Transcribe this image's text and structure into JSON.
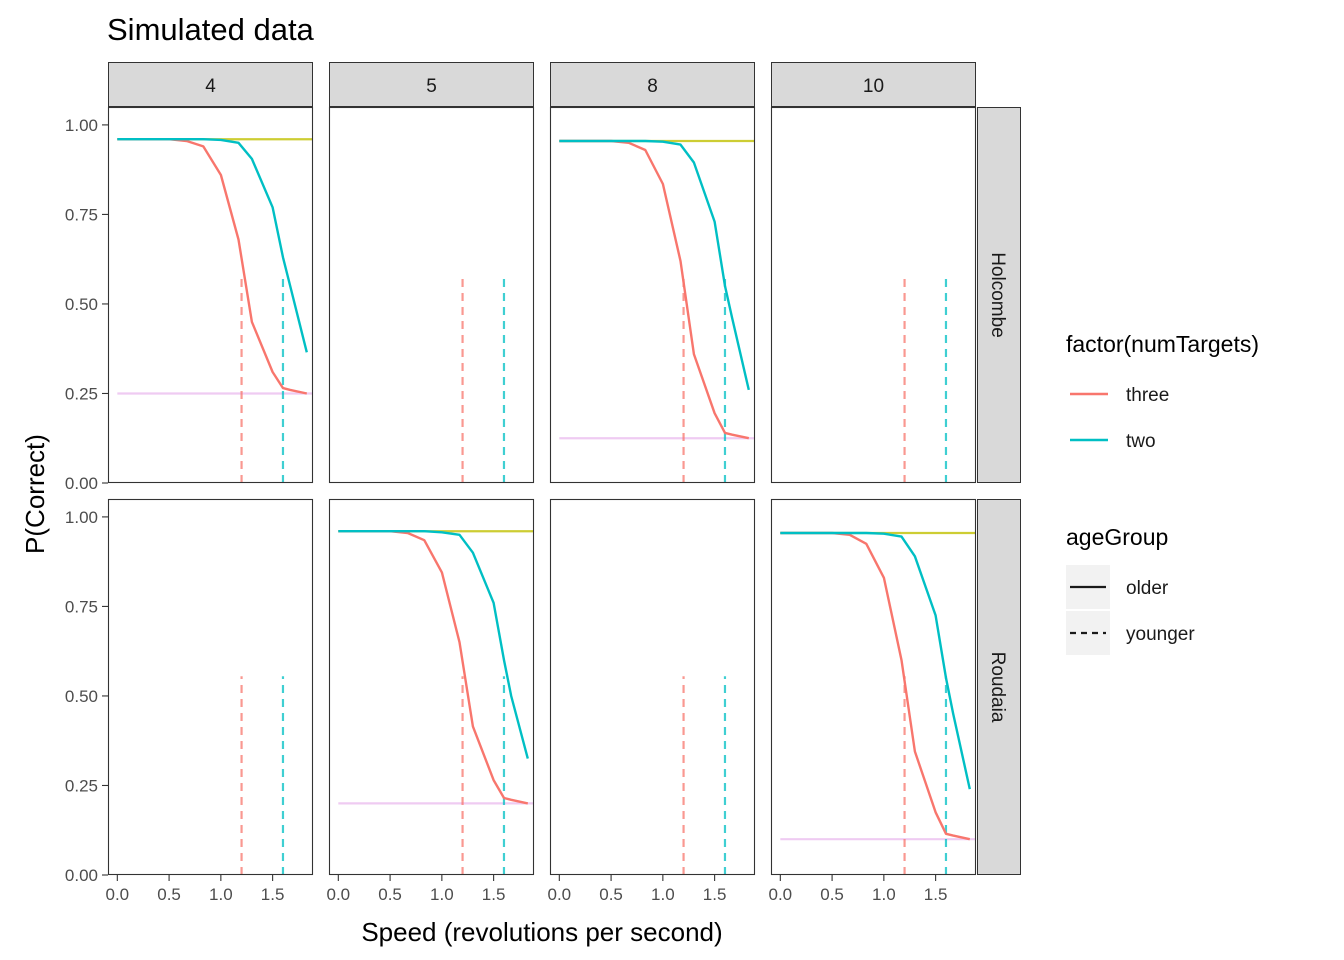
{
  "chart_data": {
    "type": "line",
    "title": "Simulated data",
    "xlabel": "Speed (revolutions per second)",
    "ylabel": "P(Correct)",
    "xlim": [
      -0.09,
      1.89
    ],
    "ylim": [
      0,
      1.05
    ],
    "x_ticks": [
      0,
      0.5,
      1,
      1.5
    ],
    "x_tick_labels": [
      "0.0",
      "0.5",
      "1.0",
      "1.5"
    ],
    "y_ticks": [
      0,
      0.25,
      0.5,
      0.75,
      1
    ],
    "y_tick_labels": [
      "0.00",
      "0.25",
      "0.50",
      "0.75",
      "1.00"
    ],
    "grid": false,
    "legend_position": "right",
    "col_facets": [
      "4",
      "5",
      "8",
      "10"
    ],
    "row_facets": [
      "Holcombe",
      "Roudaia"
    ],
    "colors": {
      "three": "#F8766D",
      "two": "#00BFC4",
      "ceiling": "#CDCD33",
      "chance": "#EFCBF2",
      "strip_fill": "#D9D9D9",
      "panel_border": "#333333"
    },
    "legends": [
      {
        "title": "factor(numTargets)",
        "type": "color",
        "items": [
          {
            "label": "three",
            "color": "#F8766D"
          },
          {
            "label": "two",
            "color": "#00BFC4"
          }
        ]
      },
      {
        "title": "ageGroup",
        "type": "linetype",
        "items": [
          {
            "label": "older",
            "dash": "solid"
          },
          {
            "label": "younger",
            "dash": "dashed"
          }
        ]
      }
    ],
    "speeds": [
      0.0,
      0.17,
      0.33,
      0.5,
      0.67,
      0.83,
      1.0,
      1.17,
      1.3,
      1.5,
      1.6,
      1.67,
      1.83
    ],
    "panels": [
      {
        "row": "Holcombe",
        "col": "4",
        "has_curves": true,
        "ceiling": 0.96,
        "chance": 0.25,
        "vlines": [
          {
            "series": "three",
            "x": 1.2,
            "y_top": 0.58
          },
          {
            "series": "two",
            "x": 1.6,
            "y_top": 0.58
          }
        ],
        "series": [
          {
            "name": "three",
            "y": [
              0.96,
              0.96,
              0.96,
              0.96,
              0.955,
              0.94,
              0.86,
              0.68,
              0.45,
              0.31,
              0.265,
              0.26,
              0.25
            ]
          },
          {
            "name": "two",
            "y": [
              0.96,
              0.96,
              0.96,
              0.96,
              0.96,
              0.96,
              0.958,
              0.95,
              0.905,
              0.77,
              0.63,
              0.55,
              0.365
            ]
          }
        ]
      },
      {
        "row": "Holcombe",
        "col": "5",
        "has_curves": false,
        "ceiling": null,
        "chance": null,
        "vlines": [
          {
            "series": "three",
            "x": 1.2,
            "y_top": 0.58
          },
          {
            "series": "two",
            "x": 1.6,
            "y_top": 0.58
          }
        ],
        "series": []
      },
      {
        "row": "Holcombe",
        "col": "8",
        "has_curves": true,
        "ceiling": 0.955,
        "chance": 0.125,
        "vlines": [
          {
            "series": "three",
            "x": 1.2,
            "y_top": 0.58
          },
          {
            "series": "two",
            "x": 1.6,
            "y_top": 0.58
          }
        ],
        "series": [
          {
            "name": "three",
            "y": [
              0.955,
              0.955,
              0.955,
              0.955,
              0.95,
              0.93,
              0.835,
              0.62,
              0.36,
              0.195,
              0.14,
              0.135,
              0.125
            ]
          },
          {
            "name": "two",
            "y": [
              0.955,
              0.955,
              0.955,
              0.955,
              0.955,
              0.955,
              0.953,
              0.945,
              0.895,
              0.73,
              0.55,
              0.46,
              0.26
            ]
          }
        ]
      },
      {
        "row": "Holcombe",
        "col": "10",
        "has_curves": false,
        "ceiling": null,
        "chance": null,
        "vlines": [
          {
            "series": "three",
            "x": 1.2,
            "y_top": 0.58
          },
          {
            "series": "two",
            "x": 1.6,
            "y_top": 0.58
          }
        ],
        "series": []
      },
      {
        "row": "Roudaia",
        "col": "4",
        "has_curves": false,
        "ceiling": null,
        "chance": null,
        "vlines": [
          {
            "series": "three",
            "x": 1.2,
            "y_top": 0.555
          },
          {
            "series": "two",
            "x": 1.6,
            "y_top": 0.555
          }
        ],
        "series": []
      },
      {
        "row": "Roudaia",
        "col": "5",
        "has_curves": true,
        "ceiling": 0.96,
        "chance": 0.2,
        "vlines": [
          {
            "series": "three",
            "x": 1.2,
            "y_top": 0.555
          },
          {
            "series": "two",
            "x": 1.6,
            "y_top": 0.555
          }
        ],
        "series": [
          {
            "name": "three",
            "y": [
              0.96,
              0.96,
              0.96,
              0.96,
              0.955,
              0.935,
              0.845,
              0.65,
              0.415,
              0.265,
              0.215,
              0.21,
              0.2
            ]
          },
          {
            "name": "two",
            "y": [
              0.96,
              0.96,
              0.96,
              0.96,
              0.96,
              0.96,
              0.957,
              0.95,
              0.9,
              0.76,
              0.6,
              0.5,
              0.325
            ]
          }
        ]
      },
      {
        "row": "Roudaia",
        "col": "8",
        "has_curves": false,
        "ceiling": null,
        "chance": null,
        "vlines": [
          {
            "series": "three",
            "x": 1.2,
            "y_top": 0.555
          },
          {
            "series": "two",
            "x": 1.6,
            "y_top": 0.555
          }
        ],
        "series": []
      },
      {
        "row": "Roudaia",
        "col": "10",
        "has_curves": true,
        "ceiling": 0.955,
        "chance": 0.1,
        "vlines": [
          {
            "series": "three",
            "x": 1.2,
            "y_top": 0.555
          },
          {
            "series": "two",
            "x": 1.6,
            "y_top": 0.555
          }
        ],
        "series": [
          {
            "name": "three",
            "y": [
              0.955,
              0.955,
              0.955,
              0.955,
              0.95,
              0.925,
              0.83,
              0.6,
              0.345,
              0.175,
              0.115,
              0.11,
              0.1
            ]
          },
          {
            "name": "two",
            "y": [
              0.955,
              0.955,
              0.955,
              0.955,
              0.955,
              0.955,
              0.953,
              0.945,
              0.89,
              0.725,
              0.55,
              0.45,
              0.24
            ]
          }
        ]
      }
    ]
  }
}
